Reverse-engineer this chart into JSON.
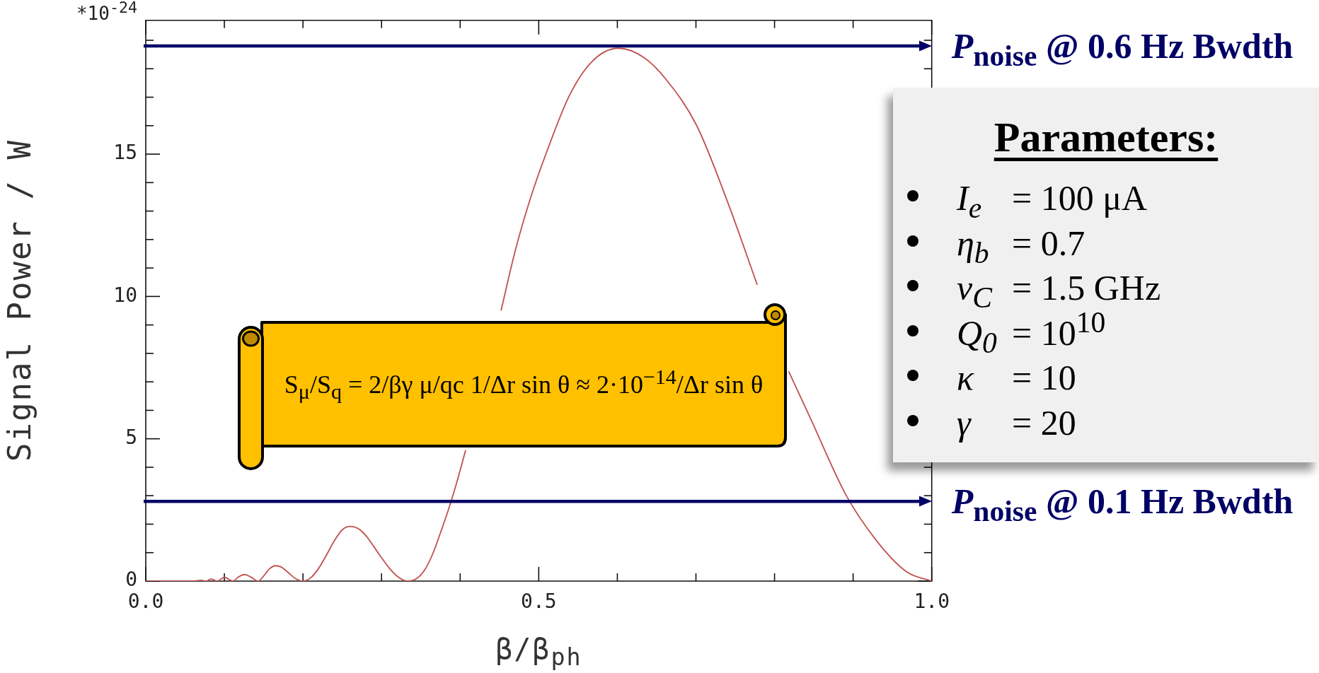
{
  "chart_data": {
    "type": "line",
    "xlabel": "β/β$_{ph}$",
    "ylabel": "Signal Power / W",
    "x": [
      0,
      0.06,
      0.07,
      0.077,
      0.083,
      0.091,
      0.1,
      0.111,
      0.118,
      0.126,
      0.134,
      0.143,
      0.15,
      0.157,
      0.165,
      0.172,
      0.18,
      0.19,
      0.2,
      0.21,
      0.22,
      0.23,
      0.24,
      0.25,
      0.26,
      0.27,
      0.28,
      0.29,
      0.3,
      0.31,
      0.32,
      0.333,
      0.345,
      0.355,
      0.365,
      0.375,
      0.385,
      0.395,
      0.407,
      0.43,
      0.452,
      0.47,
      0.49,
      0.51,
      0.539,
      0.568,
      0.601,
      0.634,
      0.663,
      0.701,
      0.74,
      0.778,
      0.795,
      0.818,
      0.845,
      0.892,
      0.935,
      0.969,
      1
    ],
    "series": [
      {
        "color": "#c0504d",
        "values": [
          0,
          0,
          0.03,
          0,
          0.07,
          0,
          0.13,
          0,
          0.15,
          0.23,
          0.14,
          0,
          0.18,
          0.42,
          0.54,
          0.5,
          0.33,
          0.1,
          0,
          0.12,
          0.45,
          0.92,
          1.42,
          1.8,
          1.92,
          1.85,
          1.6,
          1.22,
          0.82,
          0.45,
          0.17,
          0,
          0.1,
          0.4,
          0.95,
          1.7,
          2.5,
          3.4,
          4.6,
          null,
          9.5,
          11.6,
          13.5,
          15.07,
          17.06,
          18.26,
          18.72,
          18.39,
          17.59,
          16.0,
          13.34,
          10.41,
          null,
          7.37,
          5.76,
          2.97,
          1.24,
          0.31,
          0
        ]
      }
    ],
    "xlim": [
      0,
      1
    ],
    "ylim": [
      0,
      19.7
    ],
    "xticks": [
      {
        "value": 0,
        "label": "0.0"
      },
      {
        "value": 0.1,
        "label": null
      },
      {
        "value": 0.2,
        "label": null
      },
      {
        "value": 0.3,
        "label": null
      },
      {
        "value": 0.4,
        "label": null
      },
      {
        "value": 0.5,
        "label": "0.5"
      },
      {
        "value": 0.6,
        "label": null
      },
      {
        "value": 0.7,
        "label": null
      },
      {
        "value": 0.8,
        "label": null
      },
      {
        "value": 0.9,
        "label": null
      },
      {
        "value": 1,
        "label": "1.0"
      }
    ],
    "yticks": [
      0,
      {
        "value": 1,
        "label": null
      },
      {
        "value": 2,
        "label": null
      },
      {
        "value": 3,
        "label": null
      },
      {
        "value": 4,
        "label": null
      },
      5,
      {
        "value": 6,
        "label": null
      },
      {
        "value": 7,
        "label": null
      },
      {
        "value": 8,
        "label": null
      },
      {
        "value": 9,
        "label": null
      },
      10,
      {
        "value": 11,
        "label": null
      },
      {
        "value": 12,
        "label": null
      },
      {
        "value": 13,
        "label": null
      },
      {
        "value": 14,
        "label": null
      },
      15,
      {
        "value": 16,
        "label": null
      },
      {
        "value": 17,
        "label": null
      },
      {
        "value": 18,
        "label": null
      },
      {
        "value": 19,
        "label": null
      }
    ],
    "ref_lines": [
      {
        "axis": "y",
        "value": 18.8,
        "label": "P$_{noise}$ @ 0.6 Hz Bwdth",
        "color": "#000066"
      },
      {
        "axis": "y",
        "value": 2.8,
        "label": "P$_{noise}$ @ 0.1 Hz Bwdth",
        "color": "#000066"
      }
    ],
    "annotations": [
      "*10$^{-24}$",
      "S$_{μ}$/S$_{q}$ = 2/βγ μ/qc 1/Δr sin θ ≈ 2·10$^{−14}$/Δr sin θ",
      "Parameters:",
      "I$_{e}$ = 100 μA",
      "η$_{b}$ = 0.7",
      "ν$_{C}$ = 1.5 GHz",
      "Q$_{0}$ = 10$^{10}$",
      "κ = 10",
      "γ = 20"
    ]
  }
}
